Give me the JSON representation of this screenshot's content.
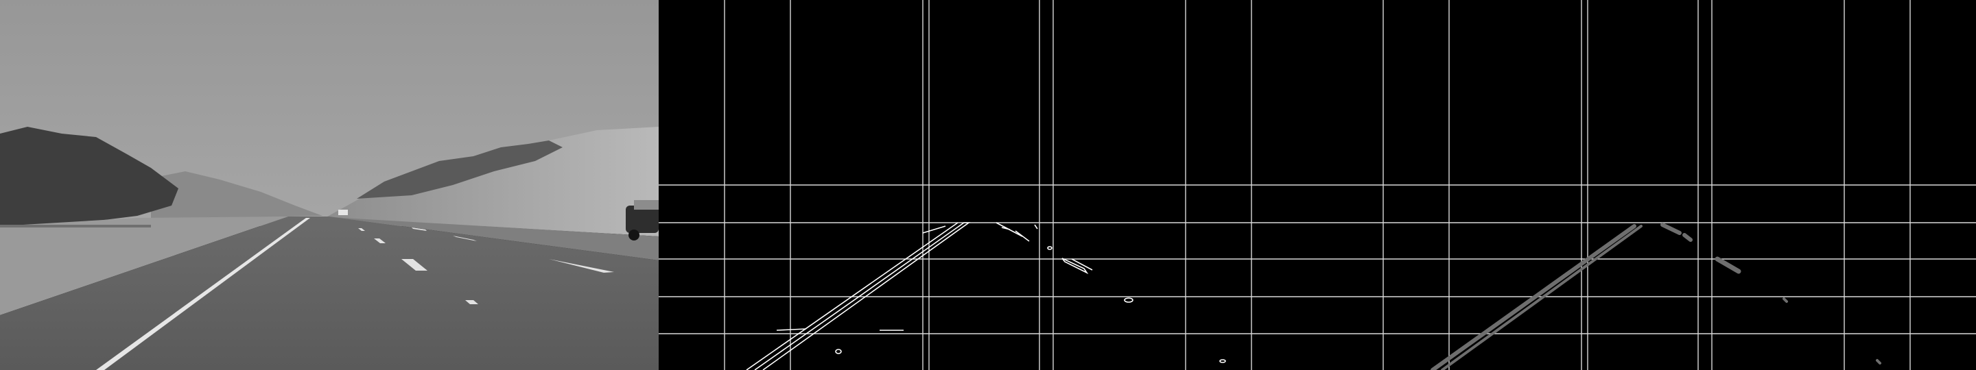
{
  "panels": [
    {
      "id": "grayscale-road",
      "content": "grayscale-photo-of-highway"
    },
    {
      "id": "canny-edges",
      "content": "edge-map-with-grid"
    },
    {
      "id": "hough-lines",
      "content": "detected-lane-lines-with-grid"
    }
  ],
  "colors": {
    "background": "#000000",
    "grid": "#d9d9d9",
    "edge": "#ffffff",
    "hough_line": "#6e6e6e"
  }
}
